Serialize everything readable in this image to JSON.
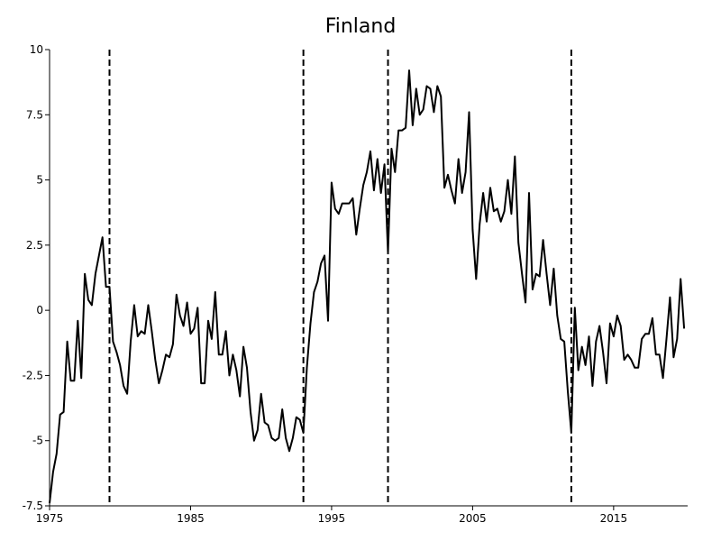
{
  "chart_data": {
    "type": "line",
    "title": "Finland",
    "xlabel": "",
    "ylabel": "",
    "xlim": [
      1975,
      2020.25
    ],
    "ylim": [
      -7.5,
      10
    ],
    "x_ticks": [
      1975,
      1985,
      1995,
      2005,
      2015
    ],
    "x_tick_labels": [
      "1975",
      "1985",
      "1995",
      "2005",
      "2015"
    ],
    "y_ticks": [
      -7.5,
      -5,
      -2.5,
      0,
      2.5,
      5,
      7.5,
      10
    ],
    "y_tick_labels": [
      "-7.5",
      "-5",
      "-2.5",
      "0",
      "2.5",
      "5",
      "7.5",
      "10"
    ],
    "vlines": [
      1979.25,
      1993.0,
      1999.0,
      2012.0
    ],
    "grid": false,
    "legend": "none",
    "line_color": "#000000",
    "series": [
      {
        "start": 1975.0,
        "step": 0.25,
        "values": [
          -7.4,
          -6.2,
          -5.5,
          -4.0,
          -3.9,
          -1.2,
          -2.7,
          -2.7,
          -0.4,
          -2.6,
          1.4,
          0.4,
          0.2,
          1.4,
          2.1,
          2.8,
          0.9,
          0.9,
          -1.2,
          -1.6,
          -2.1,
          -2.9,
          -3.2,
          -1.2,
          0.2,
          -1.0,
          -0.8,
          -0.9,
          0.2,
          -0.8,
          -1.9,
          -2.8,
          -2.3,
          -1.7,
          -1.8,
          -1.3,
          0.6,
          -0.2,
          -0.6,
          0.3,
          -0.9,
          -0.7,
          0.1,
          -2.8,
          -2.8,
          -0.4,
          -1.1,
          0.7,
          -1.7,
          -1.7,
          -0.8,
          -2.5,
          -1.7,
          -2.3,
          -3.3,
          -1.4,
          -2.2,
          -3.9,
          -5.0,
          -4.6,
          -3.2,
          -4.3,
          -4.4,
          -4.9,
          -5.0,
          -4.9,
          -3.8,
          -4.9,
          -5.4,
          -4.9,
          -4.1,
          -4.2,
          -4.7,
          -2.2,
          -0.5,
          0.7,
          1.1,
          1.8,
          2.1,
          -0.4,
          4.9,
          3.9,
          3.7,
          4.1,
          4.1,
          4.1,
          4.3,
          2.9,
          3.9,
          4.8,
          5.3,
          6.1,
          4.6,
          5.8,
          4.5,
          5.6,
          2.2,
          6.2,
          5.3,
          6.9,
          6.9,
          7.0,
          9.2,
          7.1,
          8.5,
          7.5,
          7.7,
          8.6,
          8.5,
          7.6,
          8.6,
          8.2,
          4.7,
          5.2,
          4.6,
          4.1,
          5.8,
          4.5,
          5.3,
          7.6,
          3.1,
          1.2,
          3.3,
          4.5,
          3.4,
          4.7,
          3.8,
          3.9,
          3.4,
          3.8,
          5.0,
          3.7,
          5.9,
          2.6,
          1.4,
          0.3,
          4.5,
          0.8,
          1.4,
          1.3,
          2.7,
          1.4,
          0.2,
          1.6,
          -0.2,
          -1.1,
          -1.2,
          -3.1,
          -4.7,
          0.1,
          -2.3,
          -1.4,
          -2.1,
          -1.0,
          -2.9,
          -1.2,
          -0.6,
          -1.6,
          -2.8,
          -0.5,
          -1.0,
          -0.2,
          -0.6,
          -1.9,
          -1.7,
          -1.9,
          -2.2,
          -2.2,
          -1.1,
          -0.9,
          -0.9,
          -0.3,
          -1.7,
          -1.7,
          -2.6,
          -1.1,
          0.5,
          -1.8,
          -1.1,
          1.2,
          -0.7
        ]
      }
    ]
  }
}
